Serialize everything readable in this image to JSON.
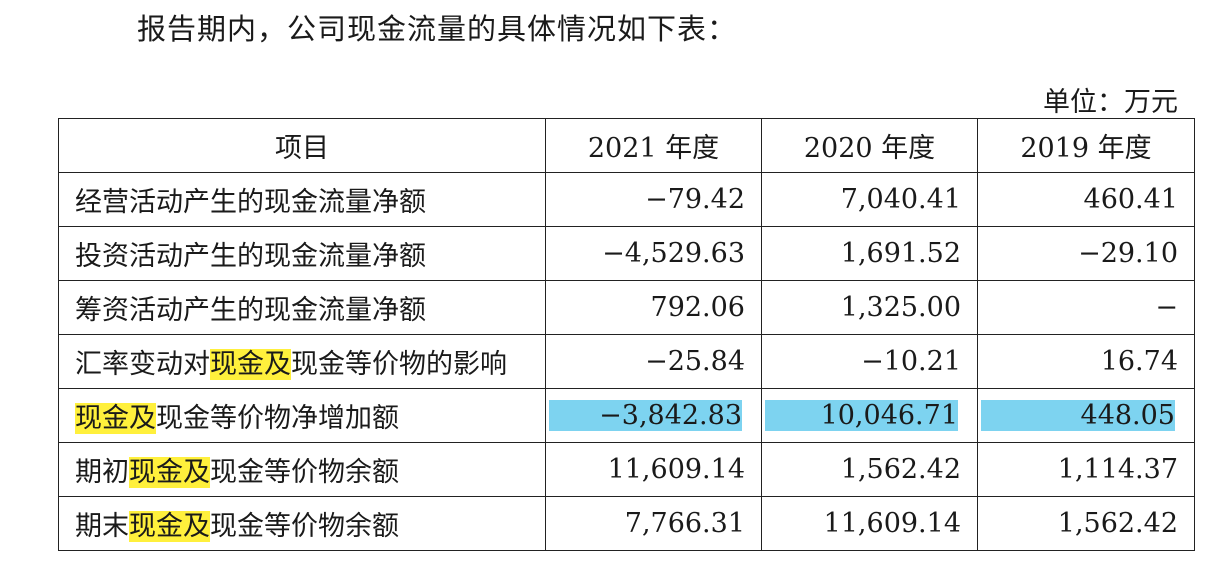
{
  "intro_text": "报告期内，公司现金流量的具体情况如下表：",
  "unit_text": "单位：万元",
  "table": {
    "headers": [
      "项目",
      "2021 年度",
      "2020 年度",
      "2019 年度"
    ],
    "rows": [
      {
        "label_pre": "经营活动产生的现金流量净额",
        "label_hl": "",
        "label_post": "",
        "values": [
          "−79.42",
          "7,040.41",
          "460.41"
        ]
      },
      {
        "label_pre": "投资活动产生的现金流量净额",
        "label_hl": "",
        "label_post": "",
        "values": [
          "−4,529.63",
          "1,691.52",
          "−29.10"
        ]
      },
      {
        "label_pre": "筹资活动产生的现金流量净额",
        "label_hl": "",
        "label_post": "",
        "values": [
          "792.06",
          "1,325.00",
          "−"
        ]
      },
      {
        "label_pre": "汇率变动对",
        "label_hl": "现金及",
        "label_post": "现金等价物的影响",
        "values": [
          "−25.84",
          "−10.21",
          "16.74"
        ]
      },
      {
        "label_pre": "",
        "label_hl": "现金及",
        "label_post": "现金等价物净增加额",
        "values": [
          "−3,842.83",
          "10,046.71",
          "448.05"
        ]
      },
      {
        "label_pre": "期初",
        "label_hl": "现金及",
        "label_post": "现金等价物余额",
        "values": [
          "11,609.14",
          "1,562.42",
          "1,114.37"
        ]
      },
      {
        "label_pre": "期末",
        "label_hl": "现金及",
        "label_post": "现金等价物余额",
        "values": [
          "7,766.31",
          "11,609.14",
          "1,562.42"
        ]
      }
    ]
  },
  "highlight_colors": {
    "text_highlight": "#fff03c",
    "row_highlight": "#7dd3f0"
  }
}
